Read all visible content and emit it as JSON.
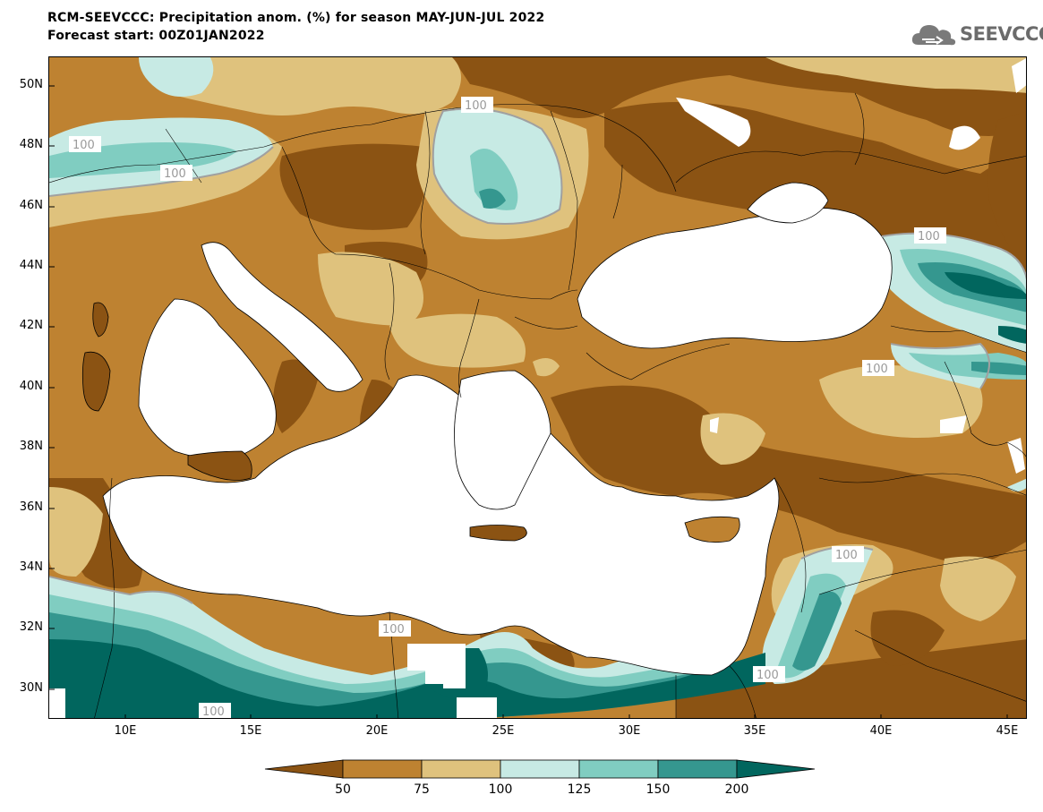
{
  "header": {
    "title_line1": "RCM-SEEVCCC: Precipitation anom. (%) for season MAY-JUN-JUL 2022",
    "title_line2": "Forecast start: 00Z01JAN2022",
    "logo_text": "SEEVCCC"
  },
  "map": {
    "lat_labels": [
      "50N",
      "48N",
      "46N",
      "44N",
      "42N",
      "40N",
      "38N",
      "36N",
      "34N",
      "32N",
      "30N"
    ],
    "lon_labels": [
      "10E",
      "15E",
      "20E",
      "25E",
      "30E",
      "35E",
      "40E",
      "45E"
    ],
    "contour_label": "100",
    "colors": {
      "lt50": "#8b5313",
      "50_75": "#be8231",
      "75_100": "#dfc27d",
      "100_125": "#c7eae4",
      "125_150": "#80cdc1",
      "150_200": "#35978f",
      "gt200": "#01665e",
      "sea": "#ffffff"
    }
  },
  "colorbar": {
    "labels": [
      "50",
      "75",
      "100",
      "125",
      "150",
      "200"
    ],
    "colors": [
      "#8b5313",
      "#be8231",
      "#dfc27d",
      "#c7eae4",
      "#80cdc1",
      "#35978f",
      "#01665e"
    ]
  }
}
